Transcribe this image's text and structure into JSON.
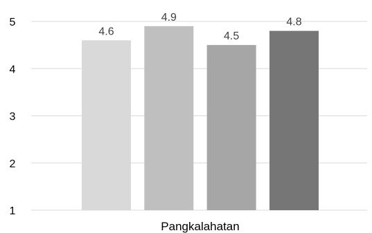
{
  "chart_data": {
    "type": "bar",
    "categories": [
      "Pangkalahatan"
    ],
    "series": [
      {
        "values": [
          4.6
        ],
        "color": "#d9d9d9"
      },
      {
        "values": [
          4.9
        ],
        "color": "#bfbfbf"
      },
      {
        "values": [
          4.5
        ],
        "color": "#a6a6a6"
      },
      {
        "values": [
          4.8
        ],
        "color": "#767676"
      }
    ],
    "data_labels": [
      "4.6",
      "4.9",
      "4.5",
      "4.8"
    ],
    "y_ticks": [
      1,
      2,
      3,
      4,
      5
    ],
    "ylim": [
      1,
      5
    ],
    "grid": true,
    "legend": "none",
    "title": "",
    "xlabel": "",
    "ylabel": ""
  }
}
